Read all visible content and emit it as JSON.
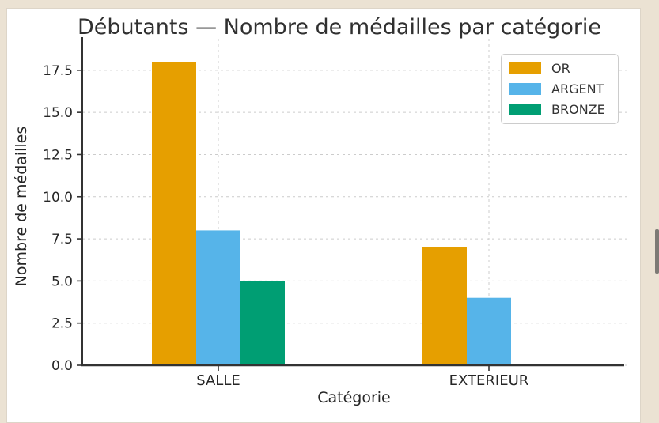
{
  "page": {
    "frame_color": "#EBE2D3",
    "panel_color": "#ffffff"
  },
  "chart_data": {
    "type": "bar",
    "title": "Débutants — Nombre de médailles par catégorie",
    "xlabel": "Catégorie",
    "ylabel": "Nombre de médailles",
    "categories": [
      "SALLE",
      "EXTERIEUR"
    ],
    "series": [
      {
        "name": "OR",
        "color": "#E69F00",
        "values": [
          18,
          7
        ]
      },
      {
        "name": "ARGENT",
        "color": "#56B4E9",
        "values": [
          8,
          4
        ]
      },
      {
        "name": "BRONZE",
        "color": "#009E73",
        "values": [
          5,
          0
        ]
      }
    ],
    "ylim": [
      0,
      18.9
    ],
    "yticks": [
      0.0,
      2.5,
      5.0,
      7.5,
      10.0,
      12.5,
      15.0,
      17.5
    ],
    "ytick_labels": [
      "0.0",
      "2.5",
      "5.0",
      "7.5",
      "10.0",
      "12.5",
      "15.0",
      "17.5"
    ],
    "grid": true,
    "grid_style": "dashed",
    "legend_position": "upper right",
    "axis_color": "#333333",
    "grid_color": "#cccccc",
    "tick_label_color": "#262626"
  },
  "scrollbar": {
    "thumb_color": "#7d7a75"
  }
}
